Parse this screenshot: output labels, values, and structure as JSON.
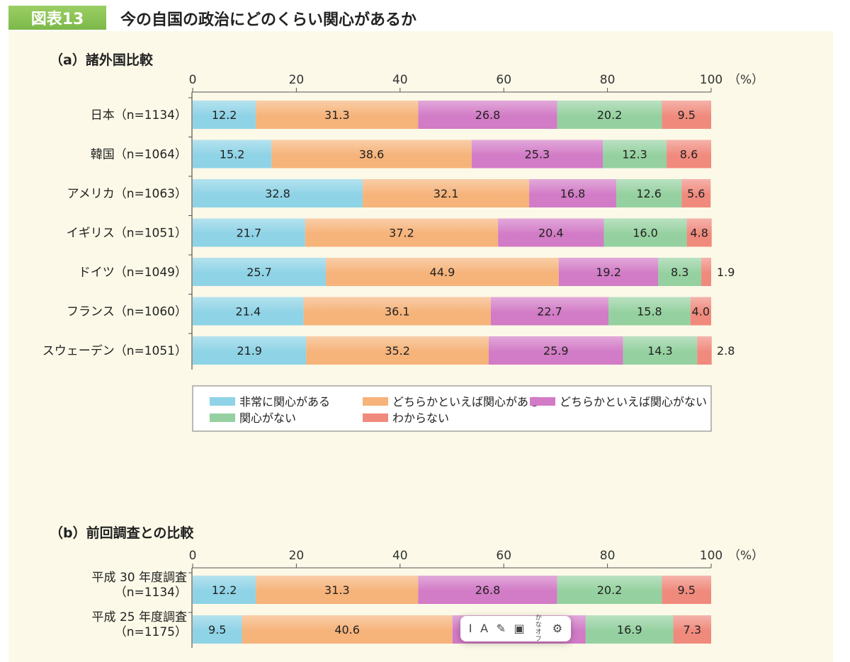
{
  "figure": {
    "badge": "図表13",
    "title": "今の自国の政治にどのくらい関心があるか"
  },
  "colors": {
    "very_interested": "#8ed3e6",
    "somewhat_interested": "#f6b37a",
    "somewhat_not": "#d27bc6",
    "not_interested": "#95d1a0",
    "dont_know": "#f08a7d"
  },
  "chart_data": [
    {
      "type": "bar",
      "orientation": "horizontal",
      "stacked": true,
      "title": "（a）諸外国比較",
      "unit_label": "（%）",
      "xlim": [
        0,
        100
      ],
      "xticks": [
        "0",
        "20",
        "40",
        "60",
        "80",
        "100"
      ],
      "grid": false,
      "legend_position": "bottom",
      "categories": [
        "日本（n=1134）",
        "韓国（n=1064）",
        "アメリカ（n=1063）",
        "イギリス（n=1051）",
        "ドイツ（n=1049）",
        "フランス（n=1060）",
        "スウェーデン（n=1051）"
      ],
      "series": [
        {
          "name": "非常に関心がある",
          "values": [
            12.2,
            15.2,
            32.8,
            21.7,
            25.7,
            21.4,
            21.9
          ]
        },
        {
          "name": "どちらかといえば関心がある",
          "values": [
            31.3,
            38.6,
            32.1,
            37.2,
            44.9,
            36.1,
            35.2
          ]
        },
        {
          "name": "どちらかといえば関心がない",
          "values": [
            26.8,
            25.3,
            16.8,
            20.4,
            19.2,
            22.7,
            25.9
          ]
        },
        {
          "name": "関心がない",
          "values": [
            20.2,
            12.3,
            12.6,
            16.0,
            8.3,
            15.8,
            14.3
          ]
        },
        {
          "name": "わからない",
          "values": [
            9.5,
            8.6,
            5.6,
            4.8,
            1.9,
            4.0,
            2.8
          ]
        }
      ],
      "labels_outside": [
        {
          "row": 4,
          "series": 4,
          "text": "1.9"
        },
        {
          "row": 6,
          "series": 4,
          "text": "2.8"
        }
      ]
    },
    {
      "type": "bar",
      "orientation": "horizontal",
      "stacked": true,
      "title": "（b）前回調査との比較",
      "unit_label": "（%）",
      "xlim": [
        0,
        100
      ],
      "xticks": [
        "0",
        "20",
        "40",
        "60",
        "80",
        "100"
      ],
      "grid": false,
      "categories": [
        [
          "平成 30 年度調査",
          "（n=1134）"
        ],
        [
          "平成 25 年度調査",
          "（n=1175）"
        ]
      ],
      "series": [
        {
          "name": "非常に関心がある",
          "values": [
            12.2,
            9.5
          ]
        },
        {
          "name": "どちらかといえば関心がある",
          "values": [
            31.3,
            40.6
          ]
        },
        {
          "name": "どちらかといえば関心がない",
          "values": [
            26.8,
            25.7
          ]
        },
        {
          "name": "関心がない",
          "values": [
            20.2,
            16.9
          ]
        },
        {
          "name": "わからない",
          "values": [
            9.5,
            7.3
          ]
        }
      ],
      "hidden_labels": [
        {
          "row": 1,
          "series": 2
        }
      ]
    }
  ],
  "legend": [
    {
      "label": "非常に関心がある",
      "color_key": "very_interested"
    },
    {
      "label": "どちらかといえば関心がある",
      "color_key": "somewhat_interested"
    },
    {
      "label": "どちらかといえば関心がない",
      "color_key": "somewhat_not"
    },
    {
      "label": "関心がない",
      "color_key": "not_interested"
    },
    {
      "label": "わからない",
      "color_key": "dont_know"
    }
  ],
  "toolbar": {
    "cursor_glyph": "I",
    "font_glyph": "A",
    "kana_label": "かな",
    "off_label": "オフ"
  }
}
